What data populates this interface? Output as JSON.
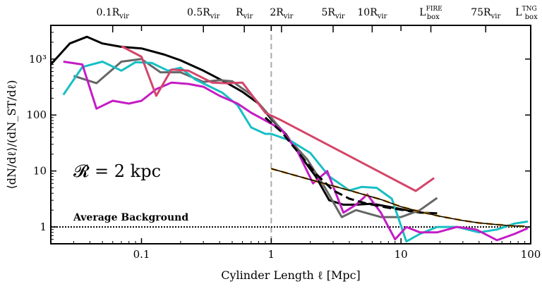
{
  "chart_data": {
    "type": "line",
    "title": "",
    "xlabel": "Cylinder Length ℓ [Mpc]",
    "ylabel": "⟨dN/dℓ⟩/(dN_ST/dℓ)",
    "x_scale": "log",
    "y_scale": "log",
    "xlim": [
      0.02,
      100
    ],
    "ylim": [
      0.5,
      4000
    ],
    "x_ticks": [
      {
        "value": 0.1,
        "label": "0.1"
      },
      {
        "value": 1,
        "label": "1"
      },
      {
        "value": 10,
        "label": "10"
      },
      {
        "value": 100,
        "label": "100"
      }
    ],
    "y_ticks": [
      {
        "value": 1,
        "label": "1"
      },
      {
        "value": 10,
        "label": "10"
      },
      {
        "value": 100,
        "label": "100"
      },
      {
        "value": 1000,
        "label": "10³"
      }
    ],
    "top_markers": [
      {
        "value": 0.06,
        "label": "0.1R",
        "sub": "vir"
      },
      {
        "value": 0.3,
        "label": "0.5R",
        "sub": "vir"
      },
      {
        "value": 0.62,
        "label": "R",
        "sub": "vir"
      },
      {
        "value": 1.2,
        "label": "2R",
        "sub": "vir"
      },
      {
        "value": 3.0,
        "label": "5R",
        "sub": "vir"
      },
      {
        "value": 6.0,
        "label": "10R",
        "sub": "vir"
      },
      {
        "value": 17.0,
        "label": "L",
        "sub": "box",
        "sup": "FIRE"
      },
      {
        "value": 45.0,
        "label": "75R",
        "sub": "vir"
      },
      {
        "value": 100.0,
        "label": "L",
        "sub": "box",
        "sup": "TNG"
      }
    ],
    "vline": {
      "x": 1,
      "color": "#aaaaaa"
    },
    "hline": {
      "y": 1,
      "label": "Average Background"
    },
    "annotation": "𝓡 = 2 kpc",
    "series": [
      {
        "name": "mean",
        "color": "#000000",
        "width": 3,
        "dash": "",
        "x": [
          0.02,
          0.028,
          0.038,
          0.05,
          0.07,
          0.1,
          0.15,
          0.2,
          0.3,
          0.45,
          0.6,
          0.8,
          1.0,
          1.3,
          1.7,
          2.2,
          2.8,
          3.6,
          4.5,
          6.0,
          8.0,
          11,
          14,
          19
        ],
        "y": [
          800,
          1900,
          2500,
          1900,
          1650,
          1550,
          1200,
          950,
          620,
          380,
          260,
          160,
          85,
          45,
          18,
          8,
          3,
          2.5,
          2.5,
          2.6,
          2.3,
          2.0,
          1.8,
          1.75
        ]
      },
      {
        "name": "gray",
        "color": "#666666",
        "width": 3,
        "dash": "",
        "x": [
          0.03,
          0.045,
          0.07,
          0.1,
          0.14,
          0.2,
          0.3,
          0.4,
          0.5,
          0.7,
          1.0,
          1.4,
          1.9,
          2.6,
          3.5,
          4.5,
          7,
          10,
          14,
          19
        ],
        "y": [
          500,
          370,
          900,
          1000,
          580,
          580,
          390,
          420,
          400,
          230,
          90,
          35,
          16,
          5,
          1.5,
          2.0,
          1.5,
          1.5,
          2.0,
          3.3
        ]
      },
      {
        "name": "cyan",
        "color": "#17bfc4",
        "width": 3,
        "dash": "",
        "x": [
          0.025,
          0.035,
          0.05,
          0.07,
          0.09,
          0.12,
          0.16,
          0.2,
          0.26,
          0.33,
          0.42,
          0.55,
          0.7,
          0.9,
          1.0,
          1.4,
          2.0,
          2.8,
          4.0,
          5.0,
          6.5,
          8.5,
          11,
          14,
          19,
          27,
          40,
          55,
          75,
          95
        ],
        "y": [
          230,
          720,
          900,
          620,
          880,
          850,
          620,
          700,
          430,
          330,
          250,
          150,
          60,
          46,
          46,
          35,
          21,
          8,
          4.5,
          5.2,
          5.0,
          3.2,
          0.55,
          0.75,
          1.0,
          1.0,
          0.8,
          0.9,
          1.15,
          1.25
        ]
      },
      {
        "name": "magenta",
        "color": "#c41cc4",
        "width": 3,
        "dash": "",
        "x": [
          0.025,
          0.035,
          0.045,
          0.06,
          0.08,
          0.1,
          0.13,
          0.17,
          0.23,
          0.3,
          0.4,
          0.55,
          0.7,
          0.9,
          1.2,
          1.6,
          2.1,
          2.7,
          3.6,
          4.5,
          5.5,
          7,
          9,
          11,
          14,
          19,
          27,
          38,
          55,
          75,
          95
        ],
        "y": [
          900,
          800,
          130,
          180,
          160,
          180,
          290,
          380,
          360,
          320,
          220,
          160,
          110,
          80,
          55,
          22,
          6,
          10,
          1.8,
          2.5,
          3.8,
          1.8,
          0.6,
          1.0,
          0.8,
          0.8,
          1.0,
          0.9,
          0.58,
          0.75,
          0.95
        ]
      },
      {
        "name": "red",
        "color": "#d4456a",
        "width": 3,
        "dash": "",
        "x": [
          0.07,
          0.1,
          0.13,
          0.17,
          0.23,
          0.35,
          0.45,
          0.6,
          0.9,
          1.2,
          13,
          18
        ],
        "y": [
          1700,
          1100,
          220,
          650,
          620,
          380,
          370,
          380,
          110,
          80,
          4.4,
          7.5
        ]
      },
      {
        "name": "model",
        "color": "#f5a623",
        "width": 3,
        "dash": "9,6",
        "x": [
          1.0,
          2.0,
          4.0,
          7.0,
          10,
          15,
          20,
          30,
          40,
          55,
          70,
          90
        ],
        "y": [
          11,
          7.0,
          4.5,
          3.1,
          2.3,
          1.8,
          1.55,
          1.3,
          1.18,
          1.1,
          1.05,
          1.03
        ]
      },
      {
        "name": "model-outline",
        "color": "#000000",
        "width": 1.5,
        "dash": "",
        "x": [
          1.0,
          2.0,
          4.0,
          7.0,
          10,
          15,
          20,
          30,
          40,
          55,
          70,
          90
        ],
        "y": [
          11,
          7.0,
          4.5,
          3.1,
          2.3,
          1.8,
          1.55,
          1.3,
          1.18,
          1.1,
          1.05,
          1.03
        ]
      },
      {
        "name": "fit-black-dash",
        "color": "#000000",
        "width": 3,
        "dash": "12,6",
        "x": [
          0.9,
          1.2,
          1.6,
          2.2,
          3.0,
          4.0,
          5.5,
          8,
          12
        ],
        "y": [
          90,
          50,
          22,
          9,
          4.5,
          3.2,
          2.6,
          2.2,
          1.9
        ]
      }
    ]
  }
}
